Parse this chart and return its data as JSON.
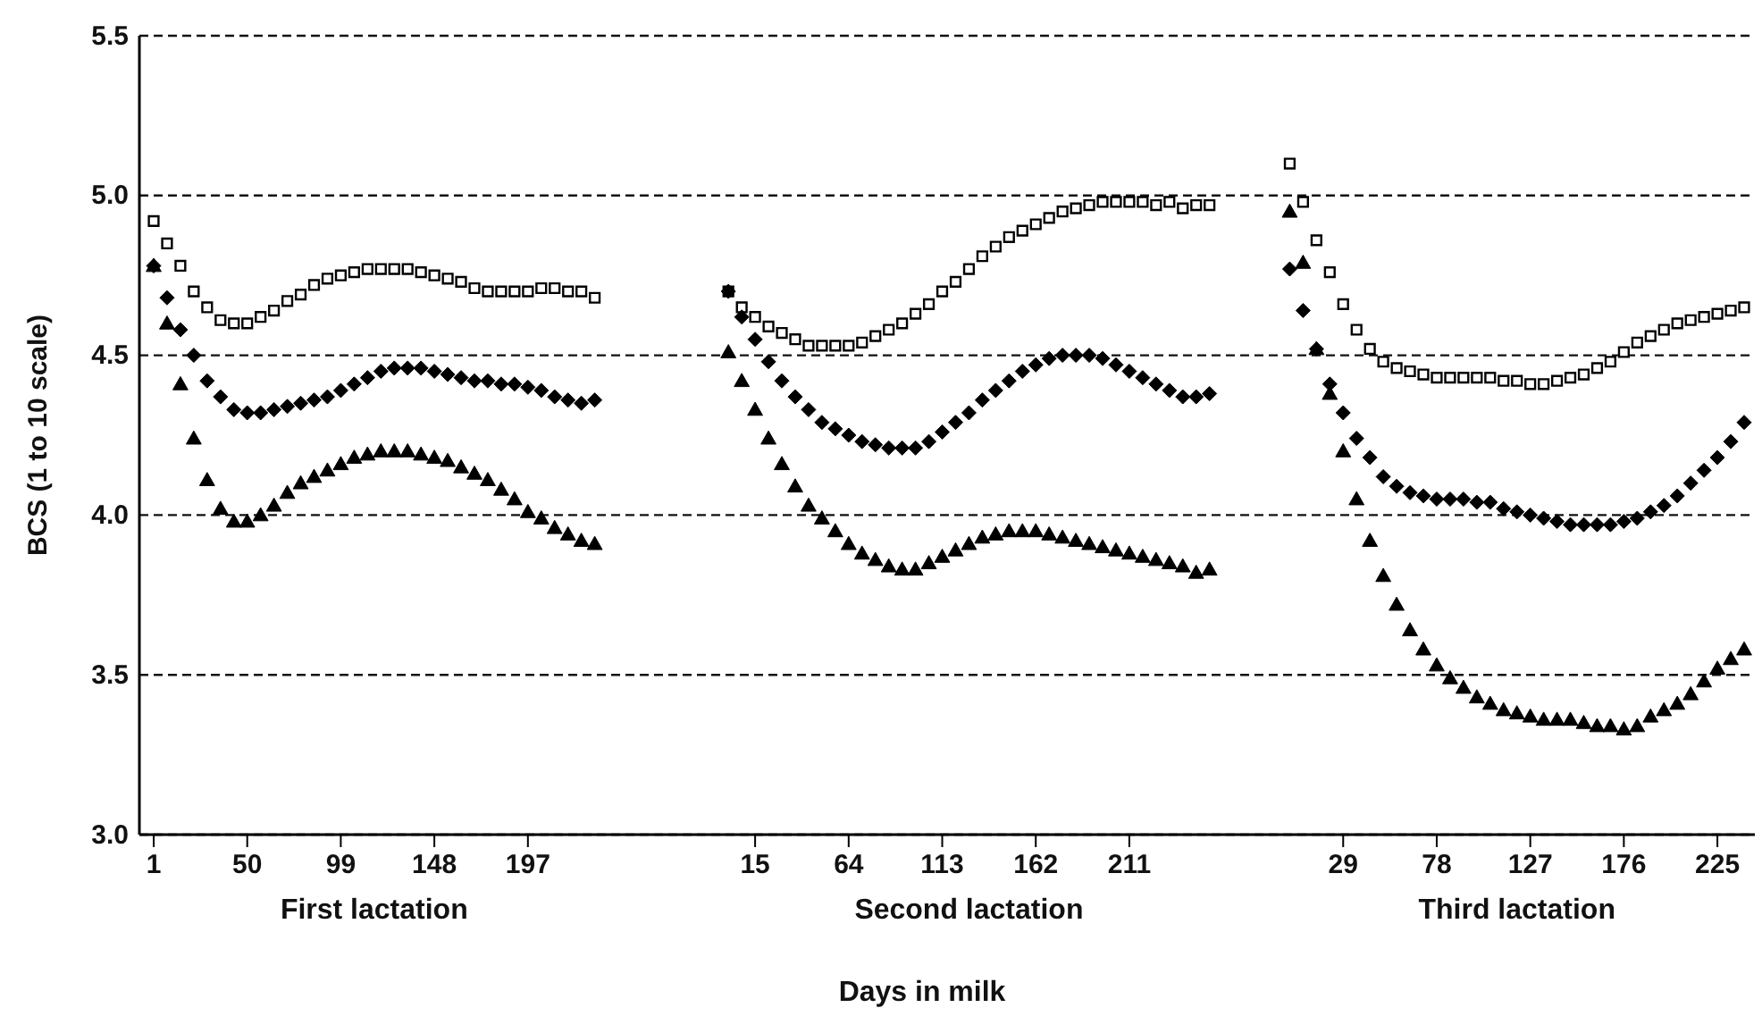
{
  "chart_data": {
    "type": "scatter",
    "xlabel": "Days in milk",
    "ylabel": "BCS (1 to 10 scale)",
    "categories": [
      "1",
      null,
      null,
      null,
      null,
      null,
      null,
      "50",
      null,
      null,
      null,
      null,
      null,
      null,
      "99",
      null,
      null,
      null,
      null,
      null,
      null,
      "148",
      null,
      null,
      null,
      null,
      null,
      null,
      "197",
      null,
      null,
      null,
      null,
      null,
      null,
      null,
      null,
      null,
      null,
      null,
      null,
      null,
      null,
      null,
      null,
      "15",
      null,
      null,
      null,
      null,
      null,
      null,
      "64",
      null,
      null,
      null,
      null,
      null,
      null,
      "113",
      null,
      null,
      null,
      null,
      null,
      null,
      "162",
      null,
      null,
      null,
      null,
      null,
      null,
      "211",
      null,
      null,
      null,
      null,
      null,
      null,
      null,
      null,
      null,
      null,
      null,
      null,
      null,
      null,
      null,
      "29",
      null,
      null,
      null,
      null,
      null,
      null,
      "78",
      null,
      null,
      null,
      null,
      null,
      null,
      "127",
      null,
      null,
      null,
      null,
      null,
      null,
      "176",
      null,
      null,
      null,
      null,
      null,
      null,
      "225",
      null,
      null
    ],
    "ylim": [
      3,
      5.5
    ],
    "yticks": [
      {
        "value": 3,
        "label": "3.0"
      },
      {
        "value": 3.5,
        "label": "3.5"
      },
      {
        "value": 4,
        "label": "4.0"
      },
      {
        "value": 4.5,
        "label": "4.5"
      },
      {
        "value": 5,
        "label": "5.0"
      },
      {
        "value": 5.5,
        "label": "5.5"
      }
    ],
    "grid": "y",
    "line_style": "dashed",
    "annotations": [
      "First lactation",
      "Second lactation",
      "Third lactation"
    ],
    "series": [
      {
        "color": "#000000",
        "marker": "square",
        "values": [
          4.92,
          4.85,
          4.78,
          4.7,
          4.65,
          4.61,
          4.6,
          4.6,
          4.62,
          4.64,
          4.67,
          4.69,
          4.72,
          4.74,
          4.75,
          4.76,
          4.77,
          4.77,
          4.77,
          4.77,
          4.76,
          4.75,
          4.74,
          4.73,
          4.71,
          4.7,
          4.7,
          4.7,
          4.7,
          4.71,
          4.71,
          4.7,
          4.7,
          4.68,
          null,
          null,
          null,
          null,
          null,
          null,
          null,
          null,
          null,
          4.7,
          4.65,
          4.62,
          4.59,
          4.57,
          4.55,
          4.53,
          4.53,
          4.53,
          4.53,
          4.54,
          4.56,
          4.58,
          4.6,
          4.63,
          4.66,
          4.7,
          4.73,
          4.77,
          4.81,
          4.84,
          4.87,
          4.89,
          4.91,
          4.93,
          4.95,
          4.96,
          4.97,
          4.98,
          4.98,
          4.98,
          4.98,
          4.97,
          4.98,
          4.96,
          4.97,
          4.97,
          null,
          null,
          null,
          null,
          null,
          5.1,
          4.98,
          4.86,
          4.76,
          4.66,
          4.58,
          4.52,
          4.48,
          4.46,
          4.45,
          4.44,
          4.43,
          4.43,
          4.43,
          4.43,
          4.43,
          4.42,
          4.42,
          4.41,
          4.41,
          4.42,
          4.43,
          4.44,
          4.46,
          4.48,
          4.51,
          4.54,
          4.56,
          4.58,
          4.6,
          4.61,
          4.62,
          4.63,
          4.64,
          4.65
        ]
      },
      {
        "color": "#000000",
        "marker": "diamond",
        "values": [
          4.78,
          4.68,
          4.58,
          4.5,
          4.42,
          4.37,
          4.33,
          4.32,
          4.32,
          4.33,
          4.34,
          4.35,
          4.36,
          4.37,
          4.39,
          4.41,
          4.43,
          4.45,
          4.46,
          4.46,
          4.46,
          4.45,
          4.44,
          4.43,
          4.42,
          4.42,
          4.41,
          4.41,
          4.4,
          4.39,
          4.37,
          4.36,
          4.35,
          4.36,
          null,
          null,
          null,
          null,
          null,
          null,
          null,
          null,
          null,
          4.7,
          4.62,
          4.55,
          4.48,
          4.42,
          4.37,
          4.33,
          4.29,
          4.27,
          4.25,
          4.23,
          4.22,
          4.21,
          4.21,
          4.21,
          4.23,
          4.26,
          4.29,
          4.32,
          4.36,
          4.39,
          4.42,
          4.45,
          4.47,
          4.49,
          4.5,
          4.5,
          4.5,
          4.49,
          4.47,
          4.45,
          4.43,
          4.41,
          4.39,
          4.37,
          4.37,
          4.38,
          null,
          null,
          null,
          null,
          null,
          4.77,
          4.64,
          4.52,
          4.41,
          4.32,
          4.24,
          4.18,
          4.12,
          4.09,
          4.07,
          4.06,
          4.05,
          4.05,
          4.05,
          4.04,
          4.04,
          4.02,
          4.01,
          4.0,
          3.99,
          3.98,
          3.97,
          3.97,
          3.97,
          3.97,
          3.98,
          3.99,
          4.01,
          4.03,
          4.06,
          4.1,
          4.14,
          4.18,
          4.23,
          4.29
        ]
      },
      {
        "color": "#000000",
        "marker": "triangle",
        "values": [
          4.78,
          4.6,
          4.41,
          4.24,
          4.11,
          4.02,
          3.98,
          3.98,
          4.0,
          4.03,
          4.07,
          4.1,
          4.12,
          4.14,
          4.16,
          4.18,
          4.19,
          4.2,
          4.2,
          4.2,
          4.19,
          4.18,
          4.17,
          4.15,
          4.13,
          4.11,
          4.08,
          4.05,
          4.01,
          3.99,
          3.96,
          3.94,
          3.92,
          3.91,
          null,
          null,
          null,
          null,
          null,
          null,
          null,
          null,
          null,
          4.51,
          4.42,
          4.33,
          4.24,
          4.16,
          4.09,
          4.03,
          3.99,
          3.95,
          3.91,
          3.88,
          3.86,
          3.84,
          3.83,
          3.83,
          3.85,
          3.87,
          3.89,
          3.91,
          3.93,
          3.94,
          3.95,
          3.95,
          3.95,
          3.94,
          3.93,
          3.92,
          3.91,
          3.9,
          3.89,
          3.88,
          3.87,
          3.86,
          3.85,
          3.84,
          3.82,
          3.83,
          null,
          null,
          null,
          null,
          null,
          4.95,
          4.79,
          4.52,
          4.38,
          4.2,
          4.05,
          3.92,
          3.81,
          3.72,
          3.64,
          3.58,
          3.53,
          3.49,
          3.46,
          3.43,
          3.41,
          3.39,
          3.38,
          3.37,
          3.36,
          3.36,
          3.36,
          3.35,
          3.34,
          3.34,
          3.33,
          3.34,
          3.37,
          3.39,
          3.41,
          3.44,
          3.48,
          3.52,
          3.55,
          3.58
        ]
      }
    ]
  }
}
